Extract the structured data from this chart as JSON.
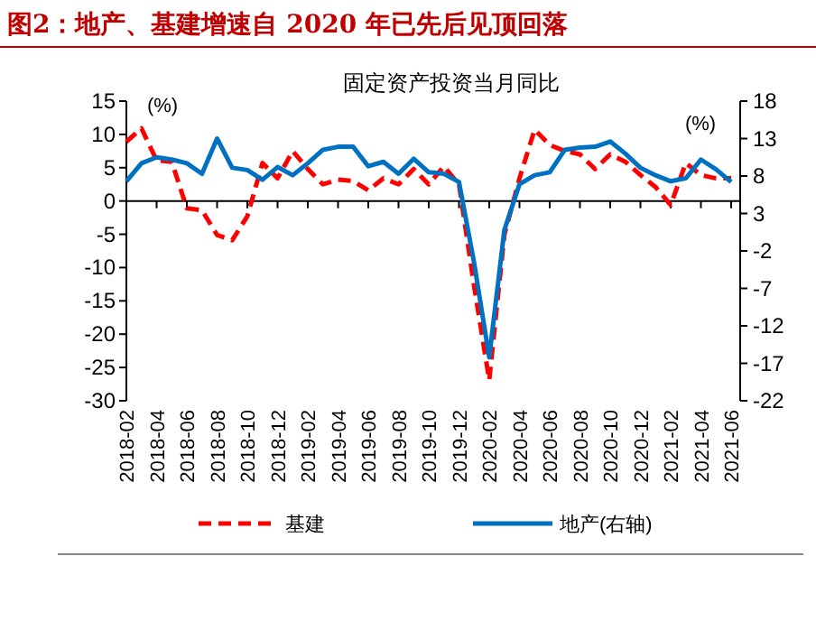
{
  "chart_data": {
    "type": "line",
    "title": "图2：地产、基建增速自 2020 年已先后见顶回落",
    "subtitle": "固定资产投资当月同比",
    "ylabel": "(%)",
    "y2label": "(%)",
    "categories": [
      "2018-02",
      null,
      "2018-04",
      null,
      "2018-06",
      null,
      "2018-08",
      null,
      "2018-10",
      null,
      "2018-12",
      null,
      "2019-02",
      null,
      "2019-04",
      null,
      "2019-06",
      null,
      "2019-08",
      null,
      "2019-10",
      null,
      "2019-12",
      null,
      "2020-02",
      null,
      "2020-04",
      null,
      "2020-06",
      null,
      "2020-08",
      null,
      "2020-10",
      null,
      "2020-12",
      null,
      "2021-02",
      null,
      "2021-04",
      null,
      "2021-06"
    ],
    "series": [
      {
        "name": "基建",
        "color": "#ff0000",
        "line_style": "dashed",
        "values": [
          8.9,
          10.9,
          6.1,
          5.9,
          -1.1,
          -1.4,
          -5.1,
          -5.9,
          -2.3,
          5.7,
          3.4,
          7.5,
          4.8,
          2.5,
          3.2,
          3.0,
          1.6,
          3.4,
          2.5,
          4.8,
          2.5,
          5.2,
          2.5,
          -12.8,
          -26.9,
          -5.1,
          3.4,
          10.7,
          8.4,
          7.5,
          7.0,
          4.8,
          7.0,
          5.9,
          3.9,
          2.1,
          -0.6,
          5.7,
          3.9,
          3.4,
          3.4
        ]
      },
      {
        "name": "地产(右轴)",
        "color": "#0070c0",
        "line_style": "solid",
        "axis": "y2",
        "values": [
          7.3,
          9.7,
          10.5,
          10.2,
          9.7,
          8.3,
          13.0,
          9.1,
          8.8,
          7.5,
          9.2,
          8.1,
          9.7,
          11.5,
          11.9,
          11.9,
          9.3,
          9.9,
          8.3,
          10.3,
          8.5,
          8.3,
          7.2,
          -3.6,
          -16.2,
          0.8,
          6.9,
          8.1,
          8.5,
          11.5,
          11.8,
          11.9,
          12.6,
          11.0,
          9.1,
          8.1,
          7.3,
          7.7,
          10.2,
          8.9,
          7.2
        ]
      }
    ],
    "ylim": [
      -30,
      15
    ],
    "yticks": [
      15,
      10,
      5,
      0,
      -5,
      -10,
      -15,
      -20,
      -25,
      -30
    ],
    "y2lim": [
      -22,
      18
    ],
    "y2ticks": [
      18,
      13,
      8,
      3,
      -2,
      -7,
      -12,
      -17,
      -22
    ],
    "legend": "bottom",
    "marker": "none"
  }
}
